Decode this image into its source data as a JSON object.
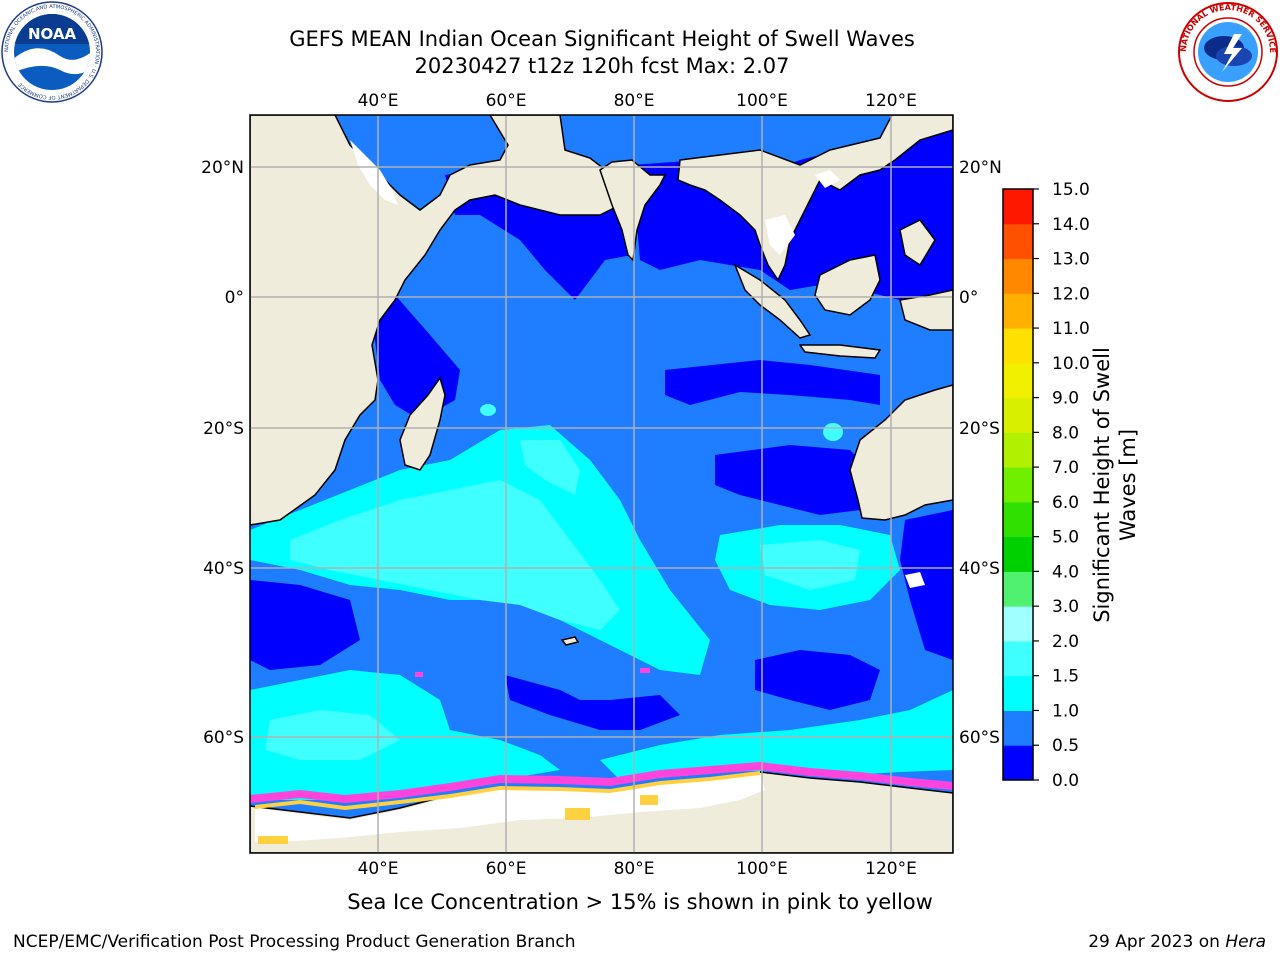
{
  "title_line1": "GEFS MEAN Indian Ocean Significant Height of Swell Waves",
  "title_line2": "20230427 t12z 120h fcst   Max: 2.07",
  "map": {
    "lon_labels": [
      "40°E",
      "60°E",
      "80°E",
      "100°E",
      "120°E"
    ],
    "lon_values": [
      40,
      60,
      80,
      100,
      120
    ],
    "lat_labels": [
      "20°N",
      "0°",
      "20°S",
      "40°S",
      "60°S"
    ],
    "lat_values": [
      20,
      0,
      -20,
      -40,
      -60
    ],
    "lon_range": [
      20,
      130
    ],
    "lat_range": [
      -70,
      27
    ],
    "colors": {
      "land": "#efecdc",
      "ocean_0_0_5": "#0000ff",
      "ocean_0_5_1_0": "#1f7dff",
      "ocean_1_0_1_5": "#00ffff",
      "ocean_1_5_2_0": "#40ffff",
      "ice_pink": "#ff44dd",
      "ice_yellow": "#ffd040"
    }
  },
  "colorbar": {
    "title_line1": "Significant Height of Swell",
    "title_line2": "Waves [m]",
    "ticks": [
      "0.0",
      "0.5",
      "1.0",
      "1.5",
      "2.0",
      "3.0",
      "4.0",
      "5.0",
      "6.0",
      "7.0",
      "8.0",
      "9.0",
      "10.0",
      "11.0",
      "12.0",
      "13.0",
      "14.0",
      "15.0"
    ],
    "colors": [
      "#0000ff",
      "#1f7dff",
      "#00ffff",
      "#40ffff",
      "#a0ffff",
      "#50f070",
      "#00d000",
      "#30e000",
      "#70f000",
      "#b0f000",
      "#d8f000",
      "#f0f000",
      "#ffe000",
      "#ffb000",
      "#ff8800",
      "#ff5000",
      "#ff1800"
    ]
  },
  "footnote": "Sea Ice Concentration > 15% is shown in pink to yellow",
  "credit": "NCEP/EMC/Verification Post Processing Product Generation Branch",
  "date": "29 Apr 2023 on ",
  "date_host": "Hera",
  "logos": {
    "noaa_text": "NOAA",
    "noaa_ring": "NATIONAL OCEANIC AND ATMOSPHERIC ADMINISTRATION · U.S. DEPARTMENT OF COMMERCE",
    "nws_ring": "NATIONAL WEATHER SERVICE"
  }
}
